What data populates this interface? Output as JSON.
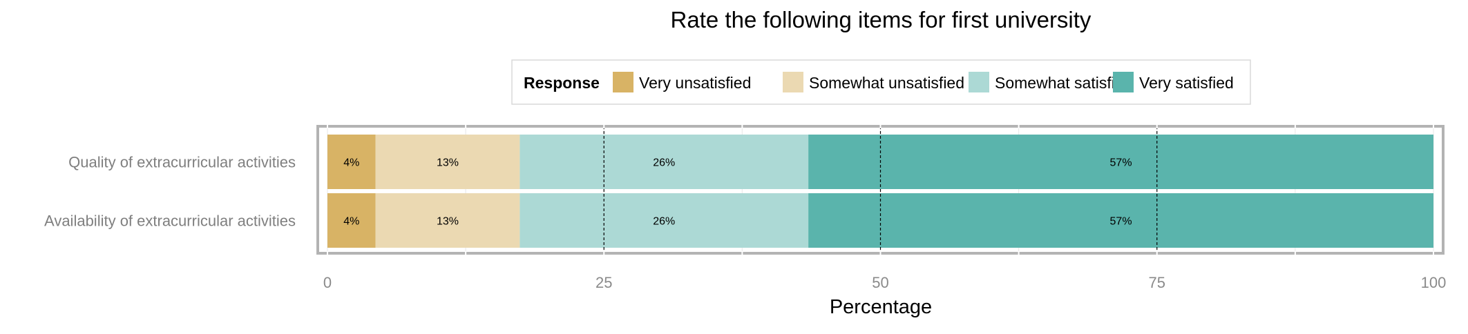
{
  "chart_data": {
    "type": "bar",
    "orientation": "horizontal",
    "stacked": true,
    "title": "Rate the following items for first university",
    "xlabel": "Percentage",
    "ylabel": "",
    "xlim": [
      0,
      100
    ],
    "x_ticks": [
      0,
      25,
      50,
      75,
      100
    ],
    "categories": [
      "Quality of extracurricular activities",
      "Availability of extracurricular activities"
    ],
    "legend": {
      "title": "Response",
      "placement": "top",
      "entries": [
        "Very unsatisfied",
        "Somewhat unsatisfied",
        "Somewhat satisfied",
        "Very satisfied"
      ]
    },
    "series": [
      {
        "name": "Very unsatisfied",
        "color": "#d8b365",
        "values": [
          4.35,
          4.35
        ],
        "labels": [
          "4%",
          "4%"
        ]
      },
      {
        "name": "Somewhat unsatisfied",
        "color": "#ebd9b2",
        "values": [
          13.04,
          13.04
        ],
        "labels": [
          "13%",
          "13%"
        ]
      },
      {
        "name": "Somewhat satisfied",
        "color": "#acd9d5",
        "values": [
          26.09,
          26.09
        ],
        "labels": [
          "26%",
          "26%"
        ]
      },
      {
        "name": "Very satisfied",
        "color": "#5ab4ac",
        "values": [
          56.52,
          56.52
        ],
        "labels": [
          "57%",
          "57%"
        ]
      }
    ],
    "grid": true,
    "reference_lines": [
      25,
      50,
      75
    ]
  }
}
